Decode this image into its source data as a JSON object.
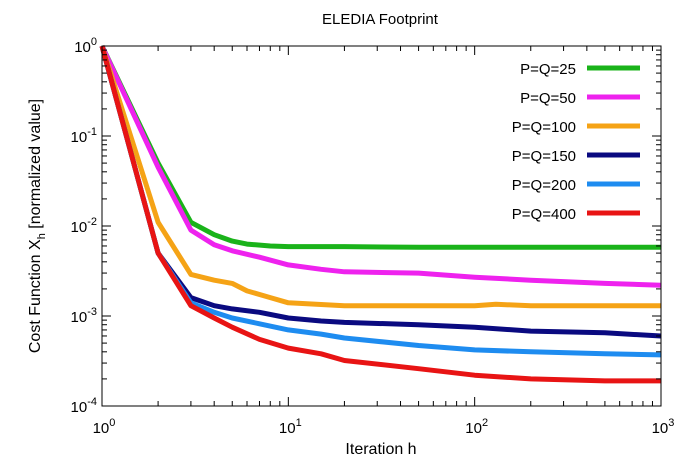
{
  "chart_data": {
    "type": "line",
    "title": "ELEDIA Footprint",
    "xlabel": "Iteration h",
    "ylabel": "Cost Function X",
    "ylabel_sub": "h",
    "ylabel_suffix": " [normalized value]",
    "x_scale": "log",
    "y_scale": "log",
    "xlim": [
      1,
      1000
    ],
    "ylim": [
      0.0001,
      1
    ],
    "grid": false,
    "legend_position": "top-right",
    "x_ticks": [
      {
        "value": 1,
        "base": "10",
        "exp": "0"
      },
      {
        "value": 10,
        "base": "10",
        "exp": "1"
      },
      {
        "value": 100,
        "base": "10",
        "exp": "2"
      },
      {
        "value": 1000,
        "base": "10",
        "exp": "3"
      }
    ],
    "y_ticks": [
      {
        "value": 1,
        "base": "10",
        "exp": "0"
      },
      {
        "value": 0.1,
        "base": "10",
        "exp": "-1"
      },
      {
        "value": 0.01,
        "base": "10",
        "exp": "-2"
      },
      {
        "value": 0.001,
        "base": "10",
        "exp": "-3"
      },
      {
        "value": 0.0001,
        "base": "10",
        "exp": "-4"
      }
    ],
    "series": [
      {
        "name": "P=Q=25",
        "color": "#1ab31a",
        "x": [
          1,
          2,
          3,
          4,
          5,
          6,
          8,
          10,
          20,
          50,
          100,
          200,
          500,
          1000
        ],
        "y": [
          1,
          0.05,
          0.011,
          0.008,
          0.0068,
          0.0063,
          0.006,
          0.0059,
          0.0059,
          0.0058,
          0.0058,
          0.0058,
          0.0058,
          0.0058
        ]
      },
      {
        "name": "P=Q=50",
        "color": "#ee22ee",
        "x": [
          1,
          2,
          3,
          4,
          5,
          7,
          10,
          15,
          20,
          50,
          100,
          200,
          500,
          1000
        ],
        "y": [
          1,
          0.045,
          0.009,
          0.0062,
          0.0053,
          0.0045,
          0.0037,
          0.0033,
          0.0031,
          0.003,
          0.0027,
          0.0025,
          0.0023,
          0.0022
        ]
      },
      {
        "name": "P=Q=100",
        "color": "#f5a316",
        "x": [
          1,
          2,
          3,
          4,
          5,
          6,
          8,
          10,
          20,
          50,
          100,
          130,
          200,
          500,
          1000
        ],
        "y": [
          1,
          0.011,
          0.0029,
          0.0025,
          0.0023,
          0.0019,
          0.0016,
          0.0014,
          0.0013,
          0.0013,
          0.0013,
          0.00135,
          0.0013,
          0.0013,
          0.0013
        ]
      },
      {
        "name": "P=Q=150",
        "color": "#0a0a80",
        "x": [
          1,
          2,
          3,
          4,
          5,
          7,
          10,
          15,
          20,
          50,
          100,
          200,
          500,
          1000
        ],
        "y": [
          1,
          0.005,
          0.0016,
          0.0013,
          0.0012,
          0.0011,
          0.00095,
          0.00088,
          0.00085,
          0.0008,
          0.00075,
          0.00068,
          0.00065,
          0.0006
        ]
      },
      {
        "name": "P=Q=200",
        "color": "#1e8cf0",
        "x": [
          1,
          2,
          3,
          4,
          5,
          7,
          10,
          15,
          20,
          50,
          100,
          200,
          500,
          1000
        ],
        "y": [
          1,
          0.005,
          0.0014,
          0.0011,
          0.00095,
          0.00082,
          0.0007,
          0.00063,
          0.00057,
          0.00047,
          0.00042,
          0.0004,
          0.00038,
          0.00037
        ]
      },
      {
        "name": "P=Q=400",
        "color": "#e81414",
        "x": [
          1,
          2,
          3,
          4,
          5,
          7,
          10,
          15,
          20,
          50,
          100,
          200,
          500,
          1000
        ],
        "y": [
          1,
          0.005,
          0.0013,
          0.00095,
          0.00075,
          0.00055,
          0.00044,
          0.00038,
          0.00032,
          0.00026,
          0.00022,
          0.0002,
          0.00019,
          0.00019
        ]
      }
    ]
  }
}
